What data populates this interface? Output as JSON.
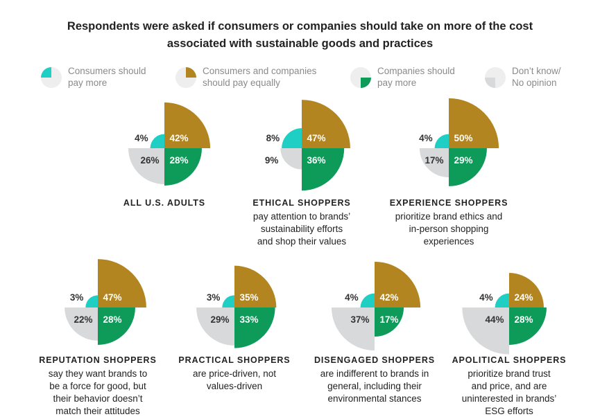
{
  "title_line1": "Respondents were asked if consumers or companies should take on more of the cost",
  "title_line2": "associated with sustainable goods and practices",
  "legend": [
    {
      "line1": "Consumers should",
      "line2": "pay more",
      "icon": "teal-quarter-icon"
    },
    {
      "line1": "Consumers and companies",
      "line2": "should pay equally",
      "icon": "gold-quarter-icon"
    },
    {
      "line1": "Companies should",
      "line2": "pay more",
      "icon": "green-quarter-icon"
    },
    {
      "line1": "Don’t know/",
      "line2": "No opinion",
      "icon": "gray-quarter-icon"
    }
  ],
  "colors": {
    "consumers": "#1fcfc4",
    "equally": "#b38520",
    "companies": "#0e9a58",
    "dont_know": "#d8d9da",
    "legend_bg": "#eeeeee"
  },
  "chart_data": {
    "type": "polar-area",
    "quadrants": [
      "Consumers should pay more",
      "Consumers and companies should pay equally",
      "Companies should pay more",
      "Don’t know/No opinion"
    ],
    "groups": [
      {
        "name": "ALL U.S. ADULTS",
        "desc": [],
        "values": {
          "consumers": 4,
          "equally": 42,
          "companies": 28,
          "dont_know": 26
        },
        "labels": {
          "consumers": "4%",
          "equally": "42%",
          "companies": "28%",
          "dont_know": "26%"
        }
      },
      {
        "name": "ETHICAL SHOPPERS",
        "desc": [
          "pay attention to brands’",
          "sustainability efforts",
          "and shop their values"
        ],
        "values": {
          "consumers": 8,
          "equally": 47,
          "companies": 36,
          "dont_know": 9
        },
        "labels": {
          "consumers": "8%",
          "equally": "47%",
          "companies": "36%",
          "dont_know": "9%"
        }
      },
      {
        "name": "EXPERIENCE SHOPPERS",
        "desc": [
          "prioritize brand ethics and",
          "in-person shopping",
          "experiences"
        ],
        "values": {
          "consumers": 4,
          "equally": 50,
          "companies": 29,
          "dont_know": 17
        },
        "labels": {
          "consumers": "4%",
          "equally": "50%",
          "companies": "29%",
          "dont_know": "17%"
        }
      },
      {
        "name": "REPUTATION SHOPPERS",
        "desc": [
          "say they want brands to",
          "be a force for good, but",
          "their behavior doesn’t",
          "match their attitudes"
        ],
        "values": {
          "consumers": 3,
          "equally": 47,
          "companies": 28,
          "dont_know": 22
        },
        "labels": {
          "consumers": "3%",
          "equally": "47%",
          "companies": "28%",
          "dont_know": "22%"
        }
      },
      {
        "name": "PRACTICAL SHOPPERS",
        "desc": [
          "are price-driven, not",
          "values-driven"
        ],
        "values": {
          "consumers": 3,
          "equally": 35,
          "companies": 33,
          "dont_know": 29
        },
        "labels": {
          "consumers": "3%",
          "equally": "35%",
          "companies": "33%",
          "dont_know": "29%"
        }
      },
      {
        "name": "DISENGAGED SHOPPERS",
        "desc": [
          "are indifferent to brands in",
          "general, including their",
          "environmental stances"
        ],
        "values": {
          "consumers": 4,
          "equally": 42,
          "companies": 17,
          "dont_know": 37
        },
        "labels": {
          "consumers": "4%",
          "equally": "42%",
          "companies": "17%",
          "dont_know": "37%"
        }
      },
      {
        "name": "APOLITICAL SHOPPERS",
        "desc": [
          "prioritize brand trust",
          "and price, and are",
          "uninterested in brands’",
          "ESG efforts"
        ],
        "values": {
          "consumers": 4,
          "equally": 24,
          "companies": 28,
          "dont_know": 44
        },
        "labels": {
          "consumers": "4%",
          "equally": "24%",
          "companies": "28%",
          "dont_know": "44%"
        }
      }
    ]
  }
}
